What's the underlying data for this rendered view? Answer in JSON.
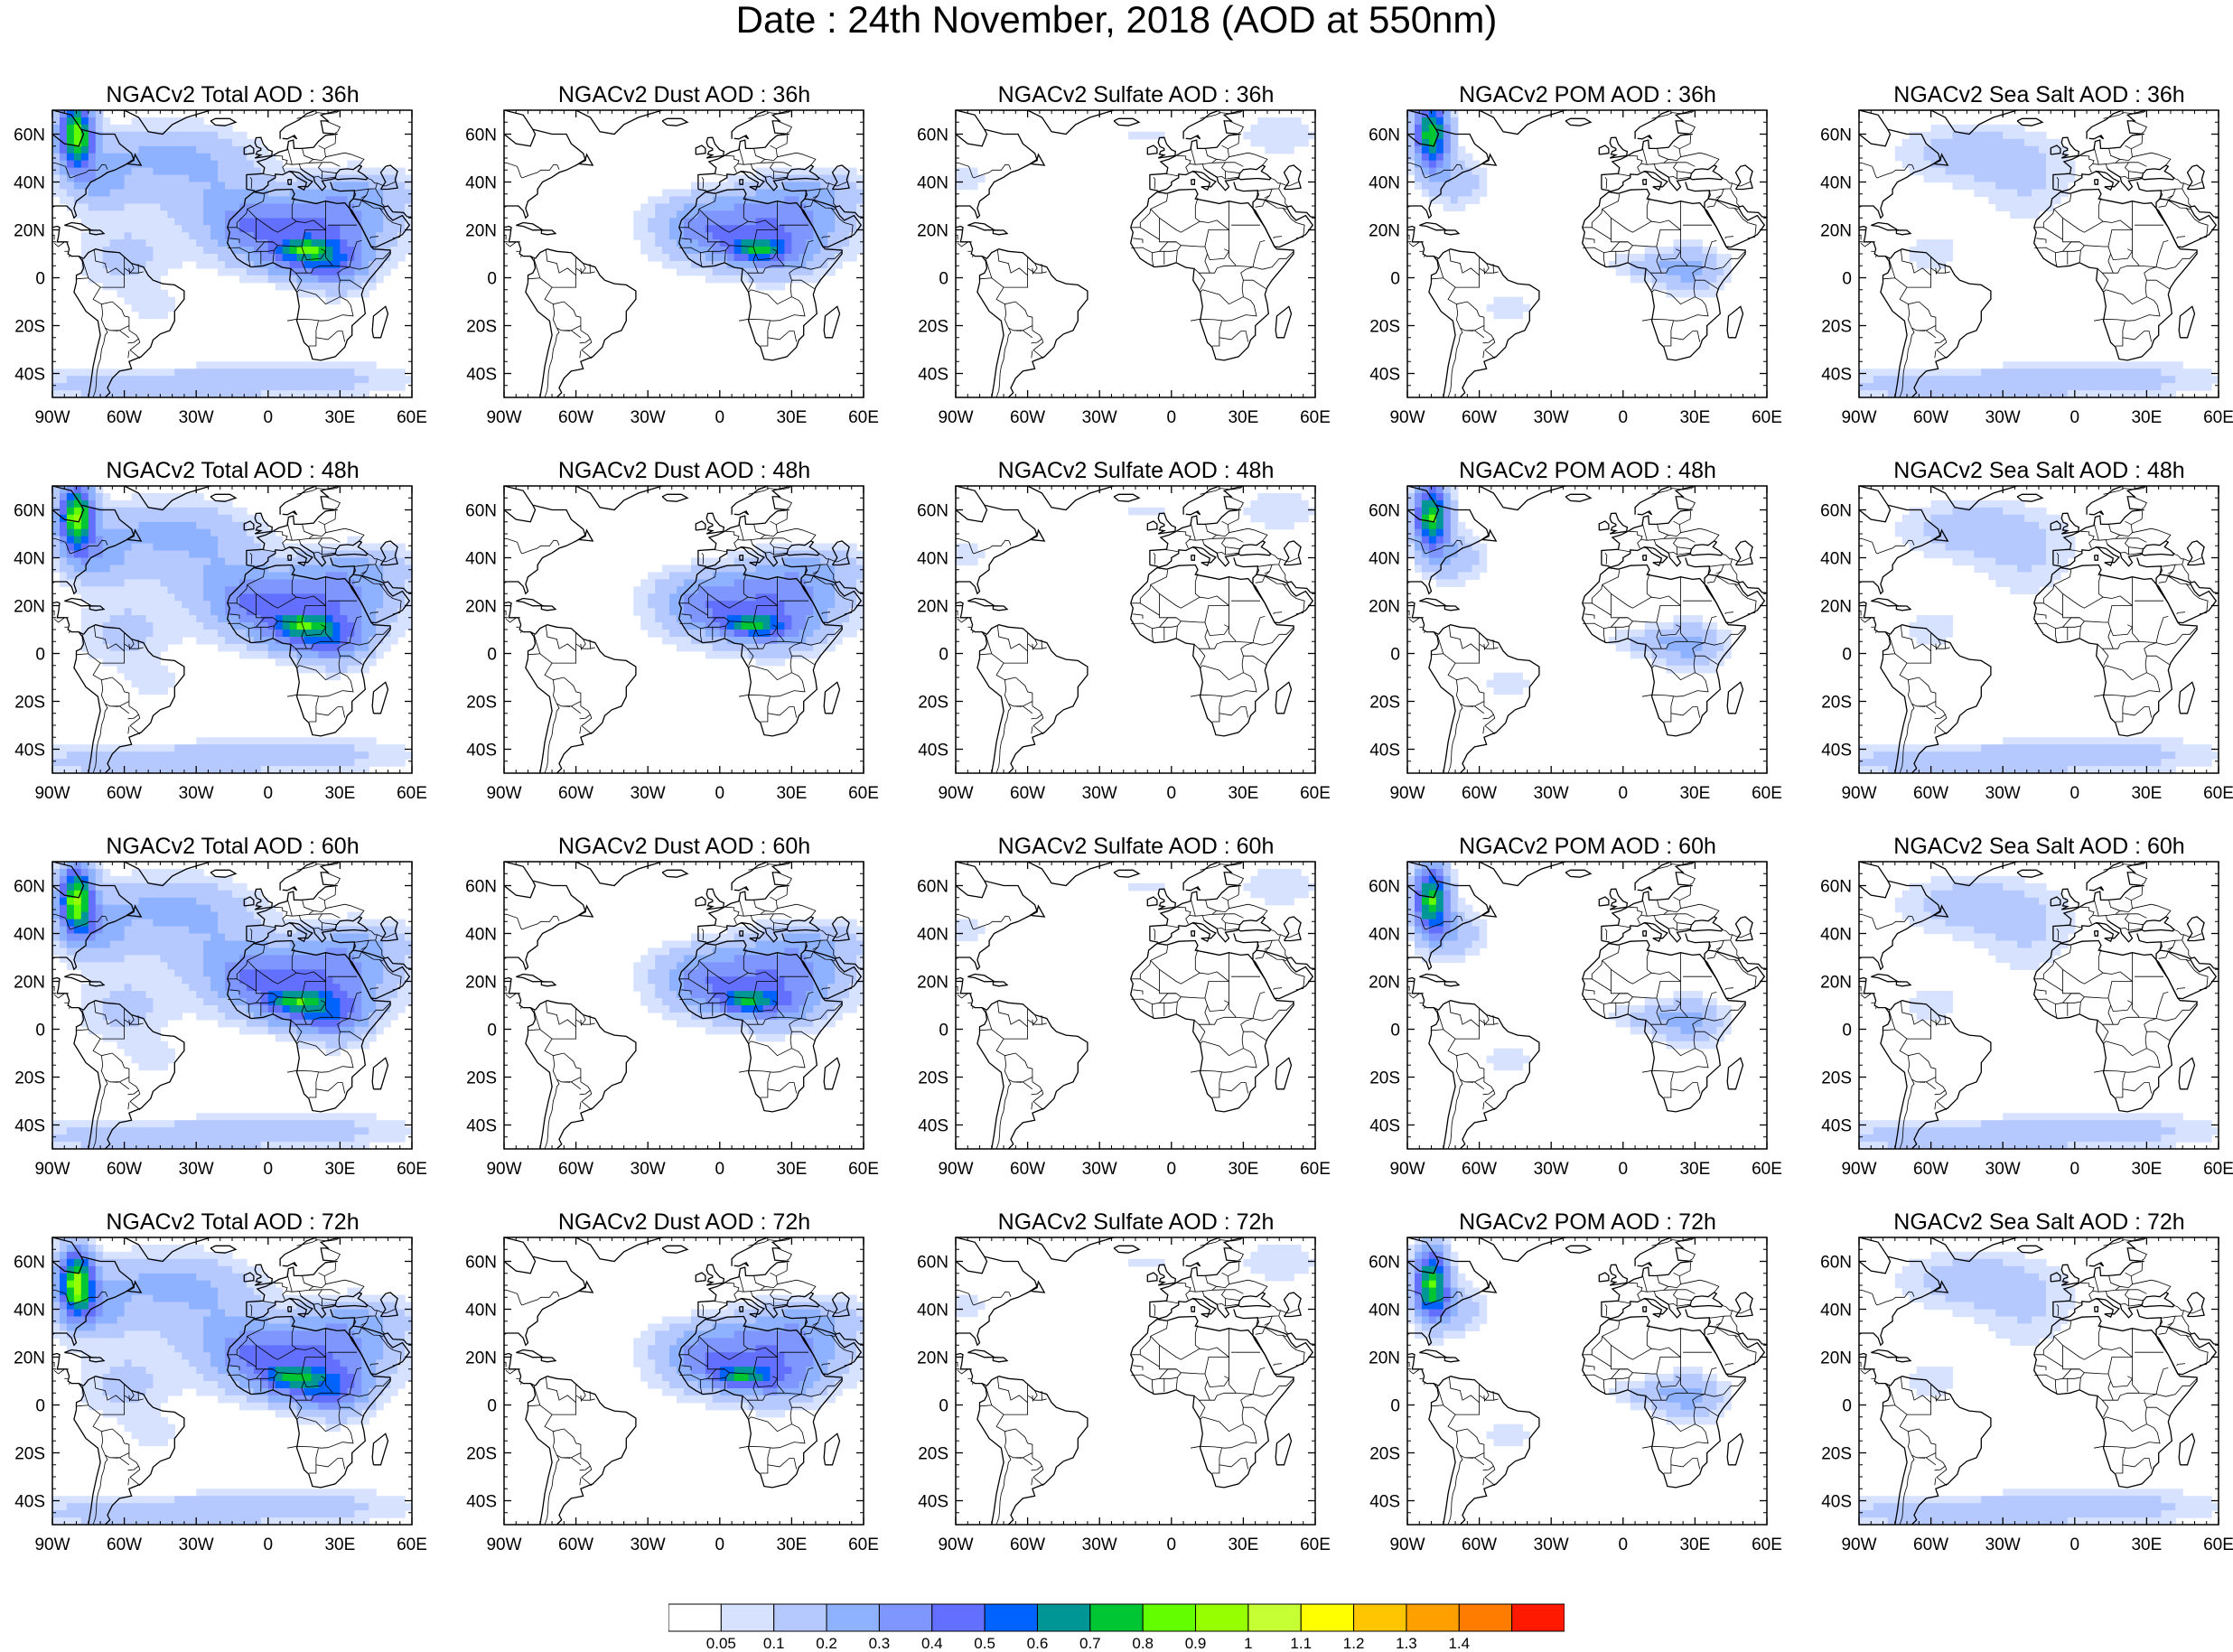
{
  "title": "Date : 24th November, 2018 (AOD at 550nm)",
  "panels": [
    {
      "title": "NGACv2 Total AOD : 36h",
      "species": "total",
      "hour": 36
    },
    {
      "title": "NGACv2 Dust AOD : 36h",
      "species": "dust",
      "hour": 36
    },
    {
      "title": "NGACv2 Sulfate AOD : 36h",
      "species": "sulfate",
      "hour": 36
    },
    {
      "title": "NGACv2 POM AOD : 36h",
      "species": "pom",
      "hour": 36
    },
    {
      "title": "NGACv2 Sea Salt AOD : 36h",
      "species": "seasalt",
      "hour": 36
    },
    {
      "title": "NGACv2 Total AOD : 48h",
      "species": "total",
      "hour": 48
    },
    {
      "title": "NGACv2 Dust AOD : 48h",
      "species": "dust",
      "hour": 48
    },
    {
      "title": "NGACv2 Sulfate AOD : 48h",
      "species": "sulfate",
      "hour": 48
    },
    {
      "title": "NGACv2 POM AOD : 48h",
      "species": "pom",
      "hour": 48
    },
    {
      "title": "NGACv2 Sea Salt AOD : 48h",
      "species": "seasalt",
      "hour": 48
    },
    {
      "title": "NGACv2 Total AOD : 60h",
      "species": "total",
      "hour": 60
    },
    {
      "title": "NGACv2 Dust AOD : 60h",
      "species": "dust",
      "hour": 60
    },
    {
      "title": "NGACv2 Sulfate AOD : 60h",
      "species": "sulfate",
      "hour": 60
    },
    {
      "title": "NGACv2 POM AOD : 60h",
      "species": "pom",
      "hour": 60
    },
    {
      "title": "NGACv2 Sea Salt AOD : 60h",
      "species": "seasalt",
      "hour": 60
    },
    {
      "title": "NGACv2 Total AOD : 72h",
      "species": "total",
      "hour": 72
    },
    {
      "title": "NGACv2 Dust AOD : 72h",
      "species": "dust",
      "hour": 72
    },
    {
      "title": "NGACv2 Sulfate AOD : 72h",
      "species": "sulfate",
      "hour": 72
    },
    {
      "title": "NGACv2 POM AOD : 72h",
      "species": "pom",
      "hour": 72
    },
    {
      "title": "NGACv2 Sea Salt  AOD : 72h",
      "species": "seasalt",
      "hour": 72
    }
  ],
  "map": {
    "lon_range": [
      -90,
      60
    ],
    "lat_range": [
      -50,
      70
    ],
    "lon_ticks": [
      -90,
      -60,
      -30,
      0,
      30,
      60
    ],
    "lon_labels": [
      "90W",
      "60W",
      "30W",
      "0",
      "30E",
      "60E"
    ],
    "lat_ticks": [
      60,
      40,
      20,
      0,
      -20,
      -40
    ],
    "lat_labels": [
      "60N",
      "40N",
      "20N",
      "0",
      "20S",
      "40S"
    ]
  },
  "colorbar": {
    "levels": [
      "0.05",
      "0.1",
      "0.2",
      "0.3",
      "0.4",
      "0.5",
      "0.6",
      "0.7",
      "0.8",
      "0.9",
      "1",
      "1.1",
      "1.2",
      "1.3",
      "1.4"
    ],
    "colors": [
      "#ffffff",
      "#d6e2ff",
      "#b5c9ff",
      "#8eb2ff",
      "#7f96ff",
      "#6370ff",
      "#0063ff",
      "#009696",
      "#00c633",
      "#63ff00",
      "#96ff00",
      "#c6ff33",
      "#ffff00",
      "#ffc600",
      "#ffa000",
      "#ff7c00",
      "#ff1900"
    ]
  },
  "icons": {
    "map": "world-map-icon"
  }
}
